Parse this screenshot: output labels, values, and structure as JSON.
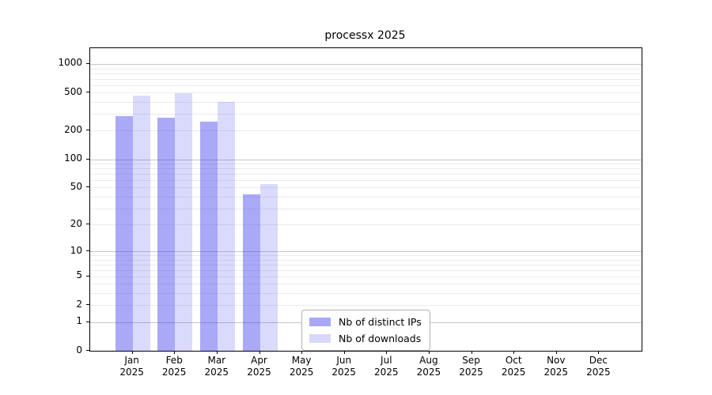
{
  "title": "processx 2025",
  "chart_data": {
    "type": "bar",
    "title": "processx 2025",
    "y_scale": "log1p",
    "grid": true,
    "legend_position": "lower center",
    "year": "2025",
    "months": [
      "Jan",
      "Feb",
      "Mar",
      "Apr",
      "May",
      "Jun",
      "Jul",
      "Aug",
      "Sep",
      "Oct",
      "Nov",
      "Dec"
    ],
    "categories": [
      "Jan 2025",
      "Feb 2025",
      "Mar 2025",
      "Apr 2025",
      "May 2025",
      "Jun 2025",
      "Jul 2025",
      "Aug 2025",
      "Sep 2025",
      "Oct 2025",
      "Nov 2025",
      "Dec 2025"
    ],
    "series": [
      {
        "name": "Nb of distinct IPs",
        "swatch_color": "#a8a8f6",
        "fill": "rgba(60,60,240,0.44)",
        "values": [
          285,
          272,
          248,
          42,
          null,
          null,
          null,
          null,
          null,
          null,
          null,
          null
        ]
      },
      {
        "name": "Nb of downloads",
        "swatch_color": "#d8d8fa",
        "fill": "rgba(60,60,240,0.19)",
        "values": [
          466,
          494,
          400,
          54,
          null,
          null,
          null,
          null,
          null,
          null,
          null,
          null
        ]
      }
    ],
    "y_ticks": [
      0,
      1,
      2,
      5,
      10,
      20,
      50,
      100,
      200,
      500,
      1000
    ],
    "y_major_gridlines": [
      1,
      10,
      100,
      1000
    ],
    "y_minor_gridlines": [
      2,
      3,
      4,
      5,
      6,
      7,
      8,
      9,
      20,
      30,
      40,
      50,
      60,
      70,
      80,
      90,
      200,
      300,
      400,
      500,
      600,
      700,
      800,
      900
    ],
    "ylim": [
      0,
      1462
    ],
    "colors": {
      "major_grid": "#c6c6c6",
      "minor_grid": "#ebebeb",
      "spine": "#000000",
      "background": "#ffffff"
    }
  }
}
